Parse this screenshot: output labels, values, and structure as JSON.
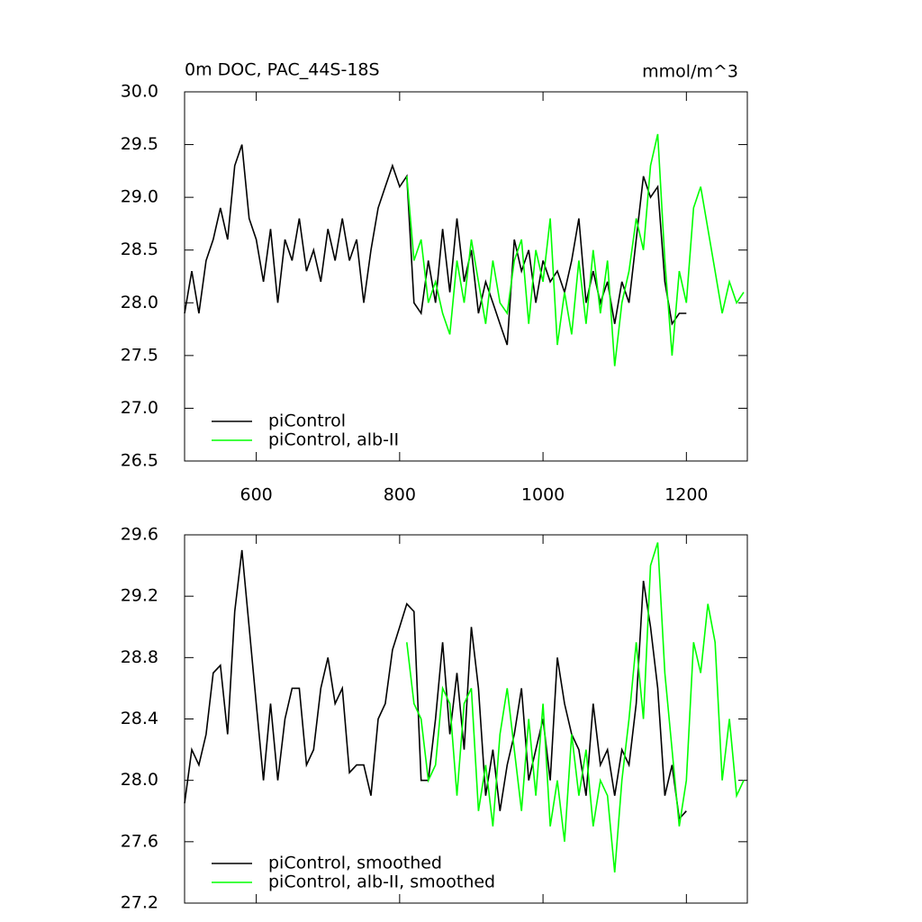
{
  "chart_data": [
    {
      "type": "line",
      "title": "0m DOC, PAC_44S-18S",
      "units": "mmol/m^3",
      "x": [
        500,
        510,
        520,
        530,
        540,
        550,
        560,
        570,
        580,
        590,
        600,
        610,
        620,
        630,
        640,
        650,
        660,
        670,
        680,
        690,
        700,
        710,
        720,
        730,
        740,
        750,
        760,
        770,
        780,
        790,
        800,
        810,
        820,
        830,
        840,
        850,
        860,
        870,
        880,
        890,
        900,
        910,
        920,
        930,
        940,
        950,
        960,
        970,
        980,
        990,
        1000,
        1010,
        1020,
        1030,
        1040,
        1050,
        1060,
        1070,
        1080,
        1090,
        1100,
        1110,
        1120,
        1130,
        1140,
        1150,
        1160,
        1170,
        1180,
        1190,
        1200,
        1210,
        1220,
        1230,
        1240,
        1250,
        1260,
        1270,
        1280
      ],
      "xlim": [
        500,
        1285
      ],
      "xticks": [
        600,
        800,
        1000,
        1200
      ],
      "ylim": [
        26.5,
        30.0
      ],
      "yticks": [
        {
          "value": 26.5,
          "label": "26.5"
        },
        {
          "value": 27,
          "label": "27.0"
        },
        27.5,
        {
          "value": 28,
          "label": "28.0"
        },
        28.5,
        {
          "value": 29,
          "label": "29.0"
        },
        29.5,
        {
          "value": 30,
          "label": "30.0"
        }
      ],
      "legend": "lower left",
      "series": [
        {
          "name": "piControl",
          "color": "#000000",
          "values": [
            27.9,
            28.3,
            27.9,
            28.4,
            28.6,
            28.9,
            28.6,
            29.3,
            29.5,
            28.8,
            28.6,
            28.2,
            28.7,
            28.0,
            28.6,
            28.4,
            28.8,
            28.3,
            28.5,
            28.2,
            28.7,
            28.4,
            28.8,
            28.4,
            28.6,
            28.0,
            28.5,
            28.9,
            29.1,
            29.3,
            29.1,
            29.2,
            28.0,
            27.9,
            28.4,
            28.0,
            28.7,
            28.1,
            28.8,
            28.2,
            28.5,
            27.9,
            28.2,
            28.0,
            27.8,
            27.6,
            28.6,
            28.3,
            28.5,
            28.0,
            28.4,
            28.2,
            28.3,
            28.1,
            28.4,
            28.8,
            28.0,
            28.3,
            28.0,
            28.2,
            27.8,
            28.2,
            28.0,
            28.6,
            29.2,
            29.0,
            29.1,
            28.2,
            27.8,
            27.9,
            27.9,
            null,
            null,
            null,
            null,
            null,
            null,
            null,
            null
          ]
        },
        {
          "name": "piControl, alb-II",
          "color": "#00ff00",
          "values": [
            null,
            null,
            null,
            null,
            null,
            null,
            null,
            null,
            null,
            null,
            null,
            null,
            null,
            null,
            null,
            null,
            null,
            null,
            null,
            null,
            null,
            null,
            null,
            null,
            null,
            null,
            null,
            null,
            null,
            null,
            null,
            29.2,
            28.4,
            28.6,
            28.0,
            28.2,
            27.9,
            27.7,
            28.4,
            28.0,
            28.6,
            28.2,
            27.8,
            28.4,
            28.0,
            27.9,
            28.4,
            28.6,
            27.8,
            28.5,
            28.2,
            28.8,
            27.6,
            28.1,
            27.7,
            28.4,
            27.8,
            28.5,
            27.9,
            28.4,
            27.4,
            28.0,
            28.3,
            28.8,
            28.5,
            29.3,
            29.6,
            28.4,
            27.5,
            28.3,
            28.0,
            28.9,
            29.1,
            28.7,
            28.3,
            27.9,
            28.2,
            28.0,
            28.1
          ]
        }
      ]
    },
    {
      "type": "line",
      "x": [
        500,
        510,
        520,
        530,
        540,
        550,
        560,
        570,
        580,
        590,
        600,
        610,
        620,
        630,
        640,
        650,
        660,
        670,
        680,
        690,
        700,
        710,
        720,
        730,
        740,
        750,
        760,
        770,
        780,
        790,
        800,
        810,
        820,
        830,
        840,
        850,
        860,
        870,
        880,
        890,
        900,
        910,
        920,
        930,
        940,
        950,
        960,
        970,
        980,
        990,
        1000,
        1010,
        1020,
        1030,
        1040,
        1050,
        1060,
        1070,
        1080,
        1090,
        1100,
        1110,
        1120,
        1130,
        1140,
        1150,
        1160,
        1170,
        1180,
        1190,
        1200,
        1210,
        1220,
        1230,
        1240,
        1250,
        1260,
        1270,
        1280
      ],
      "xlim": [
        500,
        1285
      ],
      "xticks": [
        600,
        800,
        1000,
        1200
      ],
      "ylim": [
        27.2,
        29.6
      ],
      "yticks": [
        27.2,
        27.6,
        {
          "value": 28,
          "label": "28.0"
        },
        28.4,
        28.8,
        29.2,
        29.6
      ],
      "legend": "lower left",
      "series": [
        {
          "name": "piControl, smoothed",
          "color": "#000000",
          "values": [
            27.85,
            28.2,
            28.1,
            28.3,
            28.7,
            28.75,
            28.3,
            29.1,
            29.5,
            29.0,
            28.5,
            28.0,
            28.5,
            28.0,
            28.4,
            28.6,
            28.6,
            28.1,
            28.2,
            28.6,
            28.8,
            28.5,
            28.6,
            28.05,
            28.1,
            28.1,
            27.9,
            28.4,
            28.5,
            28.85,
            29.0,
            29.15,
            29.1,
            28.0,
            28.0,
            28.4,
            28.9,
            28.3,
            28.7,
            28.2,
            29.0,
            28.6,
            27.9,
            28.2,
            27.8,
            28.1,
            28.3,
            28.6,
            28.0,
            28.2,
            28.4,
            28.0,
            28.8,
            28.5,
            28.3,
            28.2,
            27.9,
            28.5,
            28.1,
            28.2,
            27.9,
            28.2,
            28.1,
            28.5,
            29.3,
            29.0,
            28.6,
            27.9,
            28.1,
            27.75,
            27.8,
            null,
            null,
            null,
            null,
            null,
            null,
            null,
            null
          ]
        },
        {
          "name": "piControl, alb-II, smoothed",
          "color": "#00ff00",
          "values": [
            null,
            null,
            null,
            null,
            null,
            null,
            null,
            null,
            null,
            null,
            null,
            null,
            null,
            null,
            null,
            null,
            null,
            null,
            null,
            null,
            null,
            null,
            null,
            null,
            null,
            null,
            null,
            null,
            null,
            null,
            null,
            28.9,
            28.5,
            28.4,
            28.0,
            28.1,
            28.6,
            28.5,
            27.9,
            28.5,
            28.6,
            27.8,
            28.1,
            27.7,
            28.3,
            28.6,
            28.2,
            27.8,
            28.4,
            27.9,
            28.5,
            27.7,
            28.0,
            27.6,
            28.3,
            27.9,
            28.2,
            27.7,
            28.0,
            27.9,
            27.4,
            28.0,
            28.4,
            28.9,
            28.4,
            29.4,
            29.55,
            28.7,
            28.2,
            27.7,
            28.0,
            28.9,
            28.7,
            29.15,
            28.9,
            28.0,
            28.4,
            27.9,
            28.0
          ]
        }
      ]
    }
  ]
}
